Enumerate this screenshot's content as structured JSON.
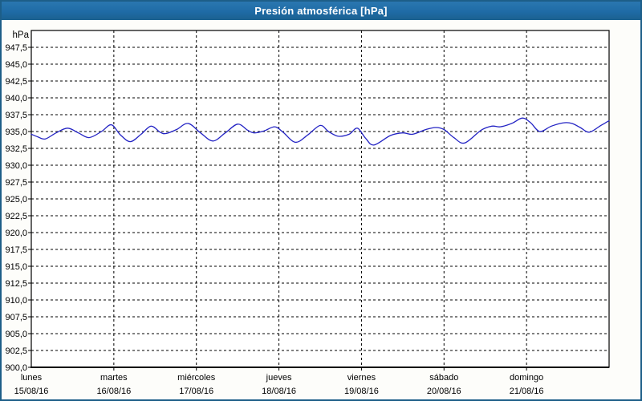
{
  "window": {
    "title": "Presión atmosférica [hPa]"
  },
  "colors": {
    "titlebar_bg": "#1f6ba6",
    "titlebar_text": "#ffffff",
    "window_border": "#1d5e88",
    "window_bg": "#fdfdfa",
    "plot_bg": "#ffffff",
    "plot_border": "#000000",
    "grid": "#000000",
    "line": "#2424c4",
    "label_text": "#000000"
  },
  "chart_data": {
    "type": "line",
    "title": "Presión atmosférica [hPa]",
    "y_axis": {
      "unit_label": "hPa",
      "min": 900,
      "max": 950,
      "tick_step": 2.5,
      "decimal_separator": ",",
      "tick_labels": [
        "947,5",
        "945,0",
        "942,5",
        "940,0",
        "937,5",
        "935,0",
        "932,5",
        "930,0",
        "927,5",
        "925,0",
        "922,5",
        "920,0",
        "917,5",
        "915,0",
        "912,5",
        "910,0",
        "907,5",
        "905,0",
        "902,5",
        "900,0"
      ]
    },
    "x_axis": {
      "span_days": 7,
      "ticks": [
        {
          "weekday": "lunes",
          "date": "15/08/16"
        },
        {
          "weekday": "martes",
          "date": "16/08/16"
        },
        {
          "weekday": "miércoles",
          "date": "17/08/16"
        },
        {
          "weekday": "jueves",
          "date": "18/08/16"
        },
        {
          "weekday": "viernes",
          "date": "19/08/16"
        },
        {
          "weekday": "sábado",
          "date": "20/08/16"
        },
        {
          "weekday": "domingo",
          "date": "21/08/16"
        }
      ]
    },
    "grid": {
      "horizontal_dashed": true,
      "vertical_dashed_day_boundaries": true,
      "legend": "none"
    },
    "series": [
      {
        "name": "Presión atmosférica",
        "unit": "hPa",
        "color": "#2424c4",
        "points_day_value": [
          [
            0.0,
            934.6
          ],
          [
            0.08,
            934.2
          ],
          [
            0.17,
            933.9
          ],
          [
            0.3,
            934.8
          ],
          [
            0.44,
            935.5
          ],
          [
            0.57,
            934.8
          ],
          [
            0.7,
            934.1
          ],
          [
            0.85,
            935.0
          ],
          [
            0.97,
            936.0
          ],
          [
            1.08,
            934.5
          ],
          [
            1.2,
            933.5
          ],
          [
            1.33,
            934.6
          ],
          [
            1.45,
            935.8
          ],
          [
            1.56,
            934.9
          ],
          [
            1.63,
            934.7
          ],
          [
            1.76,
            935.3
          ],
          [
            1.9,
            936.2
          ],
          [
            2.05,
            934.8
          ],
          [
            2.2,
            933.6
          ],
          [
            2.35,
            934.8
          ],
          [
            2.5,
            936.1
          ],
          [
            2.62,
            935.2
          ],
          [
            2.7,
            934.8
          ],
          [
            2.82,
            935.1
          ],
          [
            2.95,
            935.7
          ],
          [
            3.05,
            934.9
          ],
          [
            3.2,
            933.4
          ],
          [
            3.35,
            934.5
          ],
          [
            3.5,
            935.9
          ],
          [
            3.6,
            935.0
          ],
          [
            3.72,
            934.3
          ],
          [
            3.85,
            934.6
          ],
          [
            3.95,
            935.5
          ],
          [
            4.05,
            934.0
          ],
          [
            4.15,
            933.0
          ],
          [
            4.35,
            934.4
          ],
          [
            4.5,
            934.8
          ],
          [
            4.62,
            934.6
          ],
          [
            4.78,
            935.3
          ],
          [
            4.9,
            935.6
          ],
          [
            5.0,
            935.3
          ],
          [
            5.12,
            934.1
          ],
          [
            5.25,
            933.3
          ],
          [
            5.45,
            935.2
          ],
          [
            5.58,
            935.8
          ],
          [
            5.68,
            935.7
          ],
          [
            5.82,
            936.2
          ],
          [
            5.95,
            937.0
          ],
          [
            6.05,
            936.3
          ],
          [
            6.16,
            935.0
          ],
          [
            6.3,
            935.8
          ],
          [
            6.45,
            936.3
          ],
          [
            6.55,
            936.2
          ],
          [
            6.65,
            935.6
          ],
          [
            6.76,
            934.9
          ],
          [
            6.9,
            935.9
          ],
          [
            7.0,
            936.6
          ]
        ]
      }
    ]
  }
}
